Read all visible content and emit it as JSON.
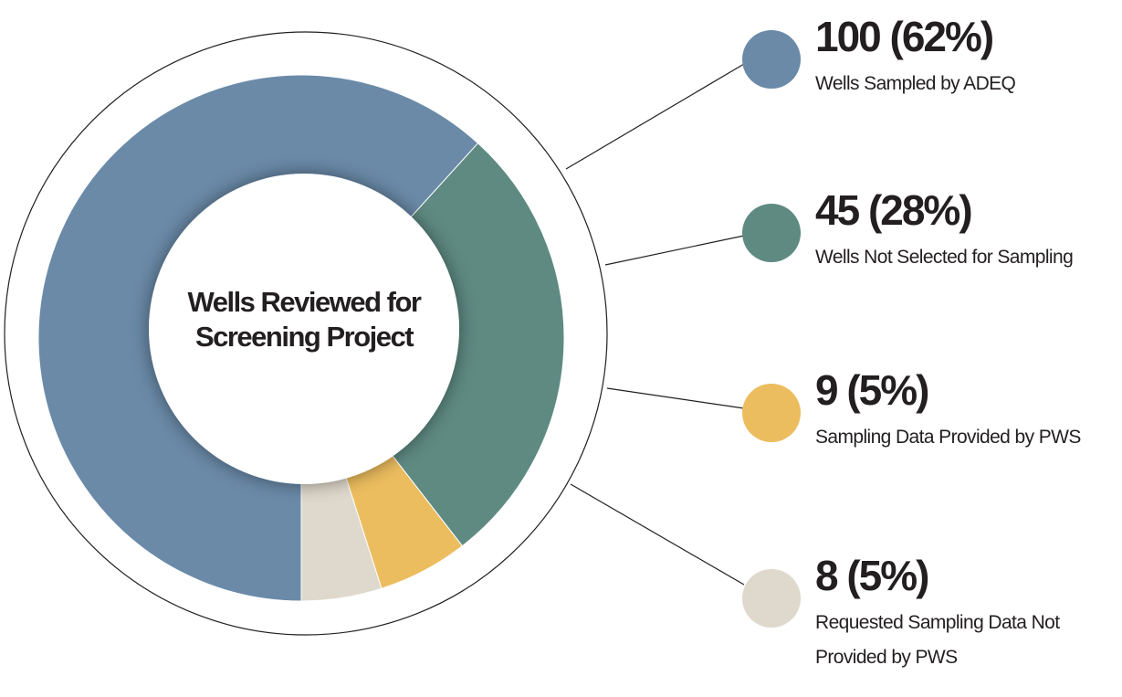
{
  "chart_data": {
    "type": "pie",
    "title": "Wells Reviewed for Screening Project",
    "categories": [
      "Wells Sampled by ADEQ",
      "Wells Not Selected for Sampling",
      "Sampling Data Provided by PWS",
      "Requested Sampling Data Not Provided by PWS"
    ],
    "values": [
      100,
      45,
      9,
      8
    ],
    "value_labels": [
      "100 (62%)",
      "45 (28%)",
      "9 (5%)",
      "8 (5%)"
    ],
    "colors": [
      "#6a8aa8",
      "#5e8a82",
      "#ecbd5f",
      "#dfd8cc"
    ]
  }
}
